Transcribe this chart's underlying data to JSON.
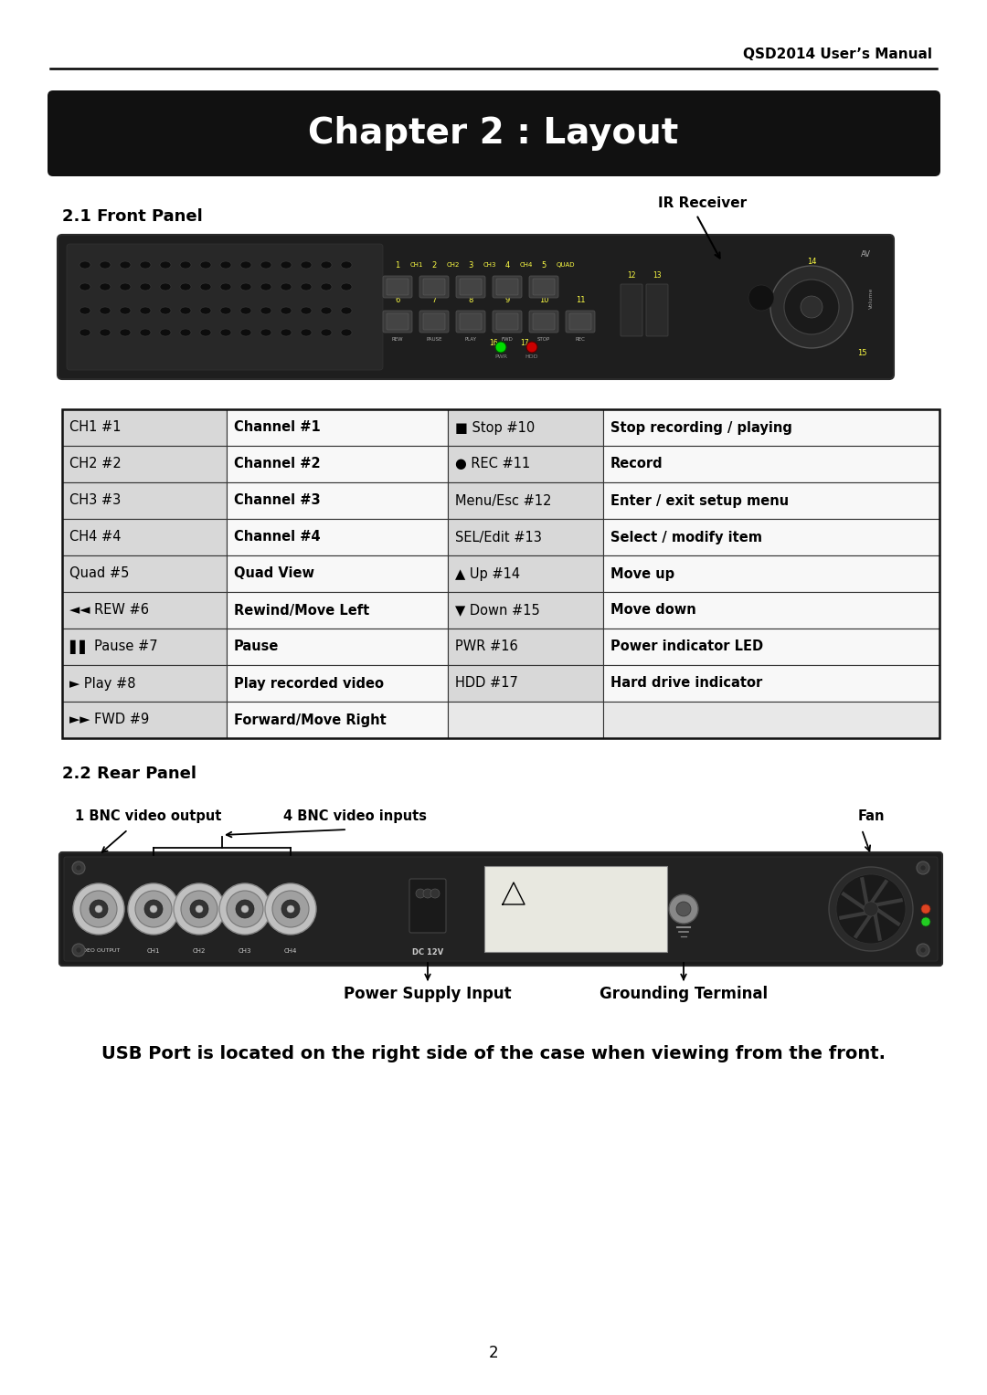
{
  "header_text": "QSD2014 User’s Manual",
  "chapter_title": "Chapter 2 : Layout",
  "section1_title": "2.1 Front Panel",
  "ir_receiver_label": "IR Receiver",
  "section2_title": "2.2 Rear Panel",
  "bnc_output_label": "1 BNC video output",
  "bnc_inputs_label": "4 BNC video inputs",
  "fan_label": "Fan",
  "power_label": "Power Supply Input",
  "ground_label": "Grounding Terminal",
  "usb_note": "USB Port is located on the right side of the case when viewing from the front.",
  "page_number": "2",
  "table_rows": [
    [
      "CH1 #1",
      "Channel #1",
      "■ Stop #10",
      "Stop recording / playing"
    ],
    [
      "CH2 #2",
      "Channel #2",
      "● REC #11",
      "Record"
    ],
    [
      "CH3 #3",
      "Channel #3",
      "Menu/Esc #12",
      "Enter / exit setup menu"
    ],
    [
      "CH4 #4",
      "Channel #4",
      "SEL/Edit #13",
      "Select / modify item"
    ],
    [
      "Quad #5",
      "Quad View",
      "▲ Up #14",
      "Move up"
    ],
    [
      "◄◄ REW #6",
      "Rewind/Move Left",
      "▼ Down #15",
      "Move down"
    ],
    [
      "▌▌ Pause #7",
      "Pause",
      "PWR #16",
      "Power indicator LED"
    ],
    [
      "► Play #8",
      "Play recorded video",
      "HDD #17",
      "Hard drive indicator"
    ],
    [
      "►► FWD #9",
      "Forward/Move Right",
      "",
      ""
    ]
  ]
}
